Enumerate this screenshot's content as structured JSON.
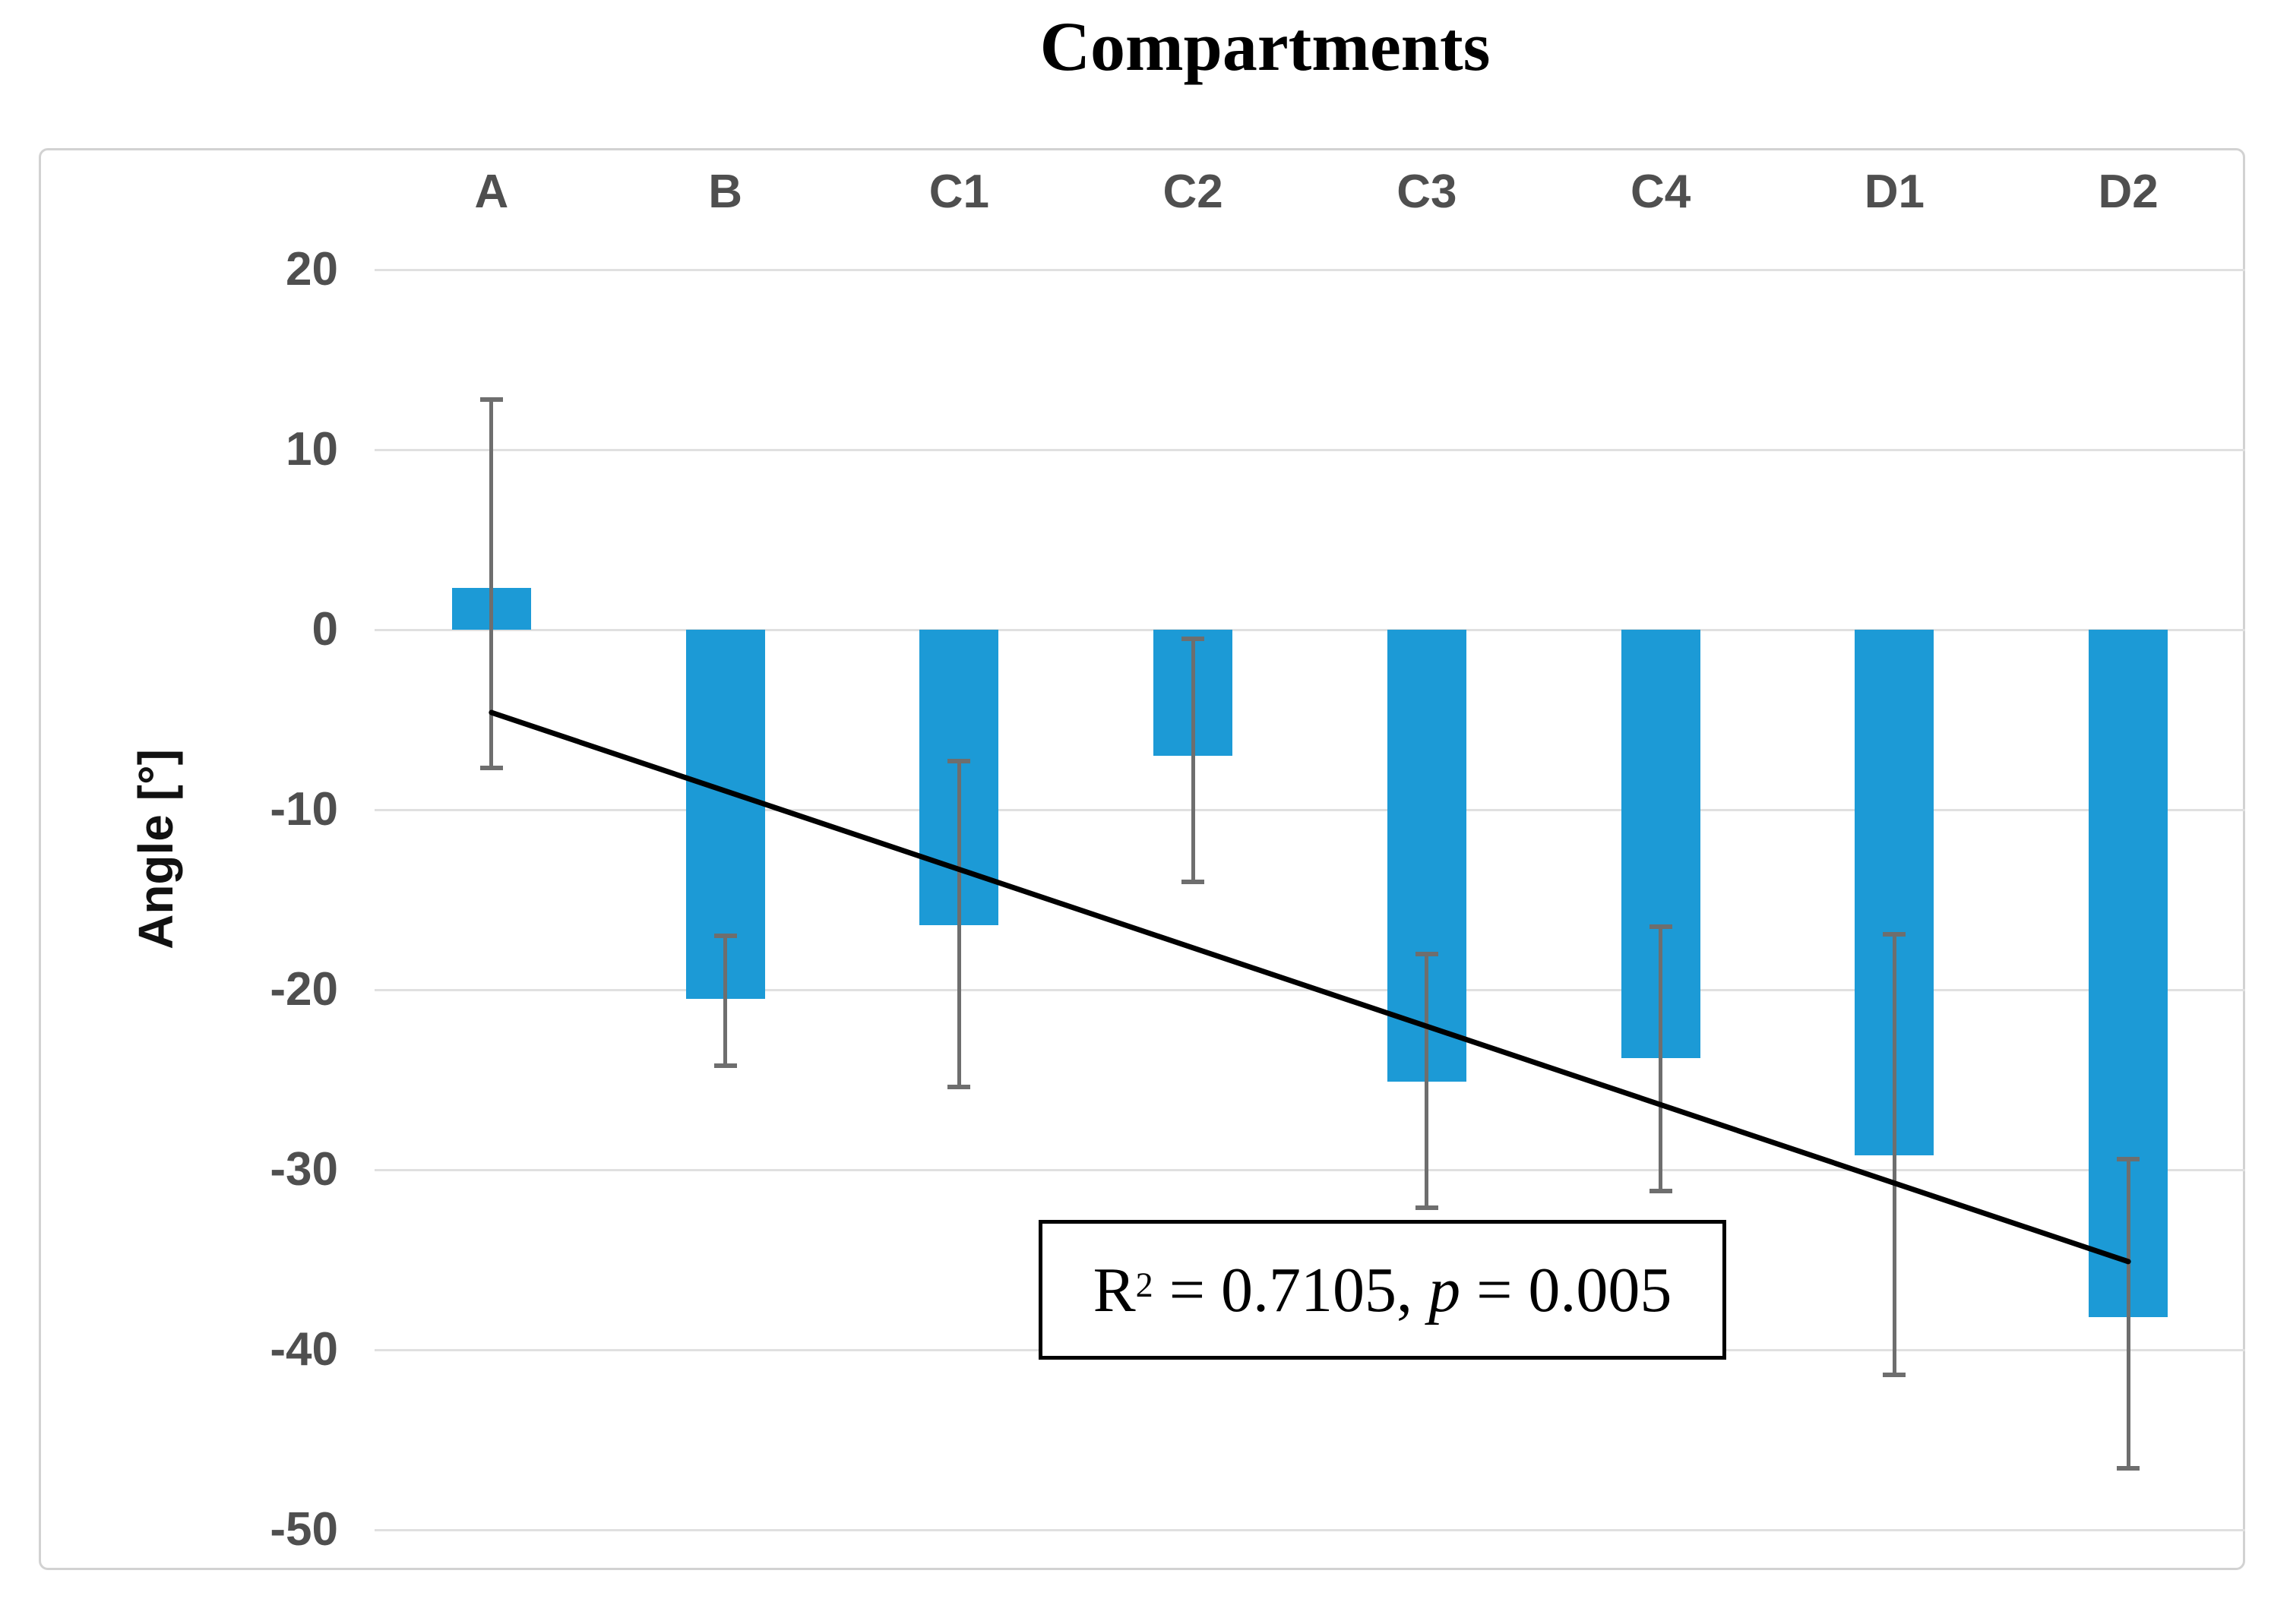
{
  "chart_data": {
    "type": "bar",
    "title": "Compartments",
    "xlabel": "",
    "ylabel": "Angle [°]",
    "categories": [
      "A",
      "B",
      "C1",
      "C2",
      "C3",
      "C4",
      "D1",
      "D2"
    ],
    "values": [
      2.3,
      -20.5,
      -16.4,
      -7.0,
      -25.1,
      -23.8,
      -29.2,
      -38.2
    ],
    "error_bars": {
      "upper": [
        12.8,
        -17.0,
        -7.3,
        -0.5,
        -18.0,
        -16.5,
        -16.9,
        -29.4
      ],
      "lower": [
        -7.7,
        -24.2,
        -25.4,
        -14.0,
        -32.1,
        -31.2,
        -41.4,
        -46.6
      ]
    },
    "trendline": {
      "start_category": "A",
      "end_category": "D2",
      "start_value": -4.6,
      "end_value": -35.1
    },
    "annotation": "R² = 0.7105, p = 0.005",
    "ylim": [
      -50,
      20
    ],
    "yticks": [
      20,
      10,
      0,
      -10,
      -20,
      -30,
      -40,
      -50
    ],
    "grid": true,
    "legend": false,
    "bar_color": "#1c9ad6",
    "error_bar_color": "#6e6e6e",
    "trend_color": "#000000",
    "gridline_color": "#e0e0e0",
    "frame_color": "#d2d2d2",
    "label_color": "#4f4f4f"
  },
  "annotation_parts": {
    "r": "R",
    "sup": "2",
    "mid": " = 0.7105, ",
    "p": "p",
    "end": " = 0.005"
  }
}
